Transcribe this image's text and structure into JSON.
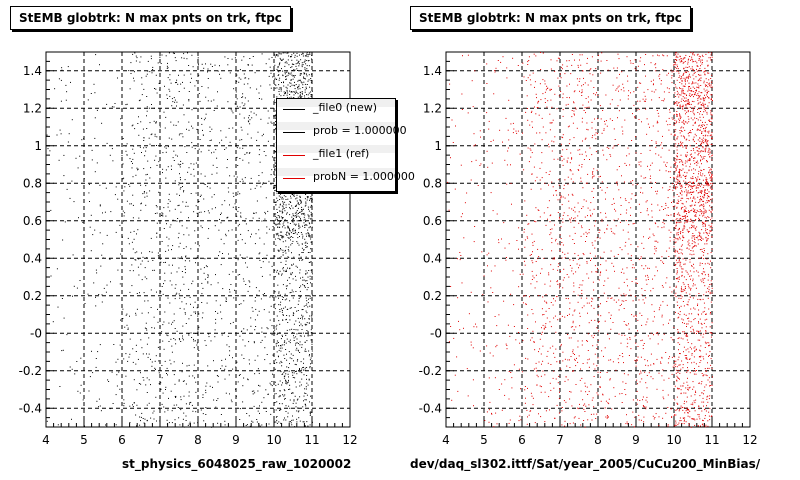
{
  "panels": [
    {
      "id": "left",
      "title": "StEMB globtrk: N max pnts on trk, ftpc",
      "xcaption": "st_physics_6048025_raw_1020002",
      "point_color": "#000000"
    },
    {
      "id": "right",
      "title": "StEMB globtrk: N max pnts on trk, ftpc",
      "xcaption": "dev/daq_sl302.ittf/Sat/year_2005/CuCu200_MinBias/",
      "point_color": "#e00000"
    }
  ],
  "legend": {
    "entries": [
      {
        "label": "_file0 (new)",
        "color": "#000000"
      },
      {
        "label": "prob = 1.000000",
        "color": "#000000"
      },
      {
        "label": "_file1 (ref)",
        "color": "#e00000"
      },
      {
        "label": "probN = 1.000000",
        "color": "#e00000"
      }
    ]
  },
  "corner_note": "",
  "chart_data": [
    {
      "type": "scatter",
      "title": "StEMB globtrk: N max pnts on trk, ftpc",
      "xlabel": "st_physics_6048025_raw_1020002",
      "ylabel": "",
      "xlim": [
        4,
        12
      ],
      "ylim": [
        -0.5,
        1.5
      ],
      "xticks": [
        "4",
        "5",
        "6",
        "7",
        "8",
        "9",
        "10",
        "11",
        "12"
      ],
      "yticks": [
        "-0.4",
        "-0.2",
        "-0",
        "0.2",
        "0.4",
        "0.6",
        "0.8",
        "1",
        "1.2",
        "1.4"
      ],
      "grid": true,
      "density": {
        "x_bands": [
          [
            4.0,
            5.0
          ],
          [
            5.0,
            6.0
          ],
          [
            6.0,
            7.0
          ],
          [
            7.0,
            8.0
          ],
          [
            8.0,
            9.0
          ],
          [
            9.0,
            10.0
          ],
          [
            10.0,
            11.0
          ]
        ],
        "relative_density": [
          0.04,
          0.06,
          0.18,
          0.22,
          0.14,
          0.18,
          1.0
        ]
      },
      "series": [
        {
          "name": "_file0 (new)",
          "color": "#000000"
        }
      ]
    },
    {
      "type": "scatter",
      "title": "StEMB globtrk: N max pnts on trk, ftpc",
      "xlabel": "dev/daq_sl302.ittf/Sat/year_2005/CuCu200_MinBias/",
      "ylabel": "",
      "xlim": [
        4,
        12
      ],
      "ylim": [
        -0.5,
        1.5
      ],
      "xticks": [
        "4",
        "5",
        "6",
        "7",
        "8",
        "9",
        "10",
        "11",
        "12"
      ],
      "yticks": [
        "-0.4",
        "-0.2",
        "-0",
        "0.2",
        "0.4",
        "0.6",
        "0.8",
        "1",
        "1.2",
        "1.4"
      ],
      "grid": true,
      "density": {
        "x_bands": [
          [
            4.0,
            5.0
          ],
          [
            5.0,
            6.0
          ],
          [
            6.0,
            7.0
          ],
          [
            7.0,
            8.0
          ],
          [
            8.0,
            9.0
          ],
          [
            9.0,
            10.0
          ],
          [
            10.0,
            11.0
          ]
        ],
        "relative_density": [
          0.04,
          0.07,
          0.2,
          0.26,
          0.18,
          0.22,
          1.0
        ]
      },
      "series": [
        {
          "name": "_file1 (ref)",
          "color": "#e00000"
        }
      ]
    }
  ]
}
